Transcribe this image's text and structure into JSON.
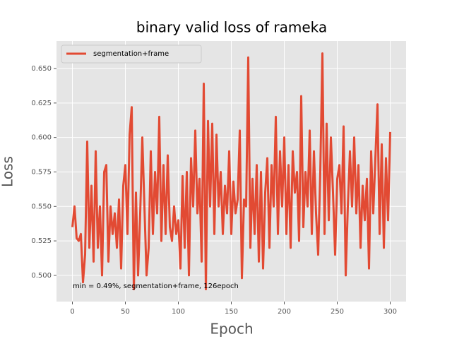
{
  "chart_data": {
    "type": "line",
    "title": "binary valid loss of rameka",
    "xlabel": "Epoch",
    "ylabel": "Loss",
    "annotation": "min  = 0.49%, segmentation+frame, 126epoch",
    "x": [
      0,
      2,
      4,
      6,
      8,
      10,
      12,
      14,
      16,
      18,
      20,
      22,
      24,
      26,
      28,
      30,
      32,
      34,
      36,
      38,
      40,
      42,
      44,
      46,
      48,
      50,
      52,
      54,
      56,
      58,
      60,
      62,
      64,
      66,
      68,
      70,
      72,
      74,
      76,
      78,
      80,
      82,
      84,
      86,
      88,
      90,
      92,
      94,
      96,
      98,
      100,
      102,
      104,
      106,
      108,
      110,
      112,
      114,
      116,
      118,
      120,
      122,
      124,
      126,
      128,
      130,
      132,
      134,
      136,
      138,
      140,
      142,
      144,
      146,
      148,
      150,
      152,
      154,
      156,
      158,
      160,
      162,
      164,
      166,
      168,
      170,
      172,
      174,
      176,
      178,
      180,
      182,
      184,
      186,
      188,
      190,
      192,
      194,
      196,
      198,
      200,
      202,
      204,
      206,
      208,
      210,
      212,
      214,
      216,
      218,
      220,
      222,
      224,
      226,
      228,
      230,
      232,
      234,
      236,
      238,
      240,
      242,
      244,
      246,
      248,
      250,
      252,
      254,
      256,
      258,
      260,
      262,
      264,
      266,
      268,
      270,
      272,
      274,
      276,
      278,
      280,
      282,
      284,
      286,
      288,
      290,
      292,
      294,
      296,
      298,
      300
    ],
    "series": [
      {
        "name": "segmentation+frame",
        "color": "#e24a33",
        "values": [
          0.535,
          0.55,
          0.527,
          0.525,
          0.53,
          0.495,
          0.515,
          0.597,
          0.52,
          0.565,
          0.51,
          0.59,
          0.52,
          0.55,
          0.5,
          0.575,
          0.58,
          0.51,
          0.55,
          0.53,
          0.545,
          0.52,
          0.555,
          0.505,
          0.565,
          0.58,
          0.53,
          0.602,
          0.622,
          0.49,
          0.56,
          0.5,
          0.545,
          0.6,
          0.55,
          0.5,
          0.52,
          0.59,
          0.53,
          0.575,
          0.545,
          0.615,
          0.525,
          0.58,
          0.53,
          0.587,
          0.535,
          0.525,
          0.55,
          0.53,
          0.54,
          0.505,
          0.572,
          0.52,
          0.575,
          0.5,
          0.585,
          0.55,
          0.605,
          0.545,
          0.57,
          0.51,
          0.639,
          0.49,
          0.612,
          0.55,
          0.61,
          0.53,
          0.602,
          0.55,
          0.575,
          0.53,
          0.565,
          0.545,
          0.59,
          0.53,
          0.568,
          0.545,
          0.555,
          0.605,
          0.498,
          0.555,
          0.55,
          0.658,
          0.52,
          0.57,
          0.53,
          0.58,
          0.51,
          0.575,
          0.505,
          0.56,
          0.585,
          0.52,
          0.58,
          0.55,
          0.615,
          0.53,
          0.59,
          0.55,
          0.6,
          0.53,
          0.58,
          0.52,
          0.59,
          0.56,
          0.575,
          0.525,
          0.63,
          0.535,
          0.575,
          0.55,
          0.605,
          0.53,
          0.59,
          0.545,
          0.515,
          0.575,
          0.661,
          0.53,
          0.61,
          0.54,
          0.6,
          0.56,
          0.515,
          0.57,
          0.58,
          0.545,
          0.608,
          0.5,
          0.55,
          0.59,
          0.55,
          0.6,
          0.545,
          0.58,
          0.52,
          0.565,
          0.54,
          0.57,
          0.505,
          0.59,
          0.545,
          0.585,
          0.624,
          0.53,
          0.595,
          0.52,
          0.585,
          0.54,
          0.604
        ]
      }
    ],
    "xlim": [
      -15,
      315
    ],
    "xticks": [
      0,
      50,
      100,
      150,
      200,
      250,
      300
    ],
    "ylim": [
      0.481,
      0.67
    ],
    "yticks": [
      {
        "value": 0.5,
        "label": "0.500"
      },
      0.525,
      {
        "value": 0.55,
        "label": "0.550"
      },
      0.575,
      {
        "value": 0.6,
        "label": "0.600"
      },
      0.625,
      {
        "value": 0.65,
        "label": "0.650"
      }
    ],
    "grid": true,
    "legend": "upper left"
  }
}
